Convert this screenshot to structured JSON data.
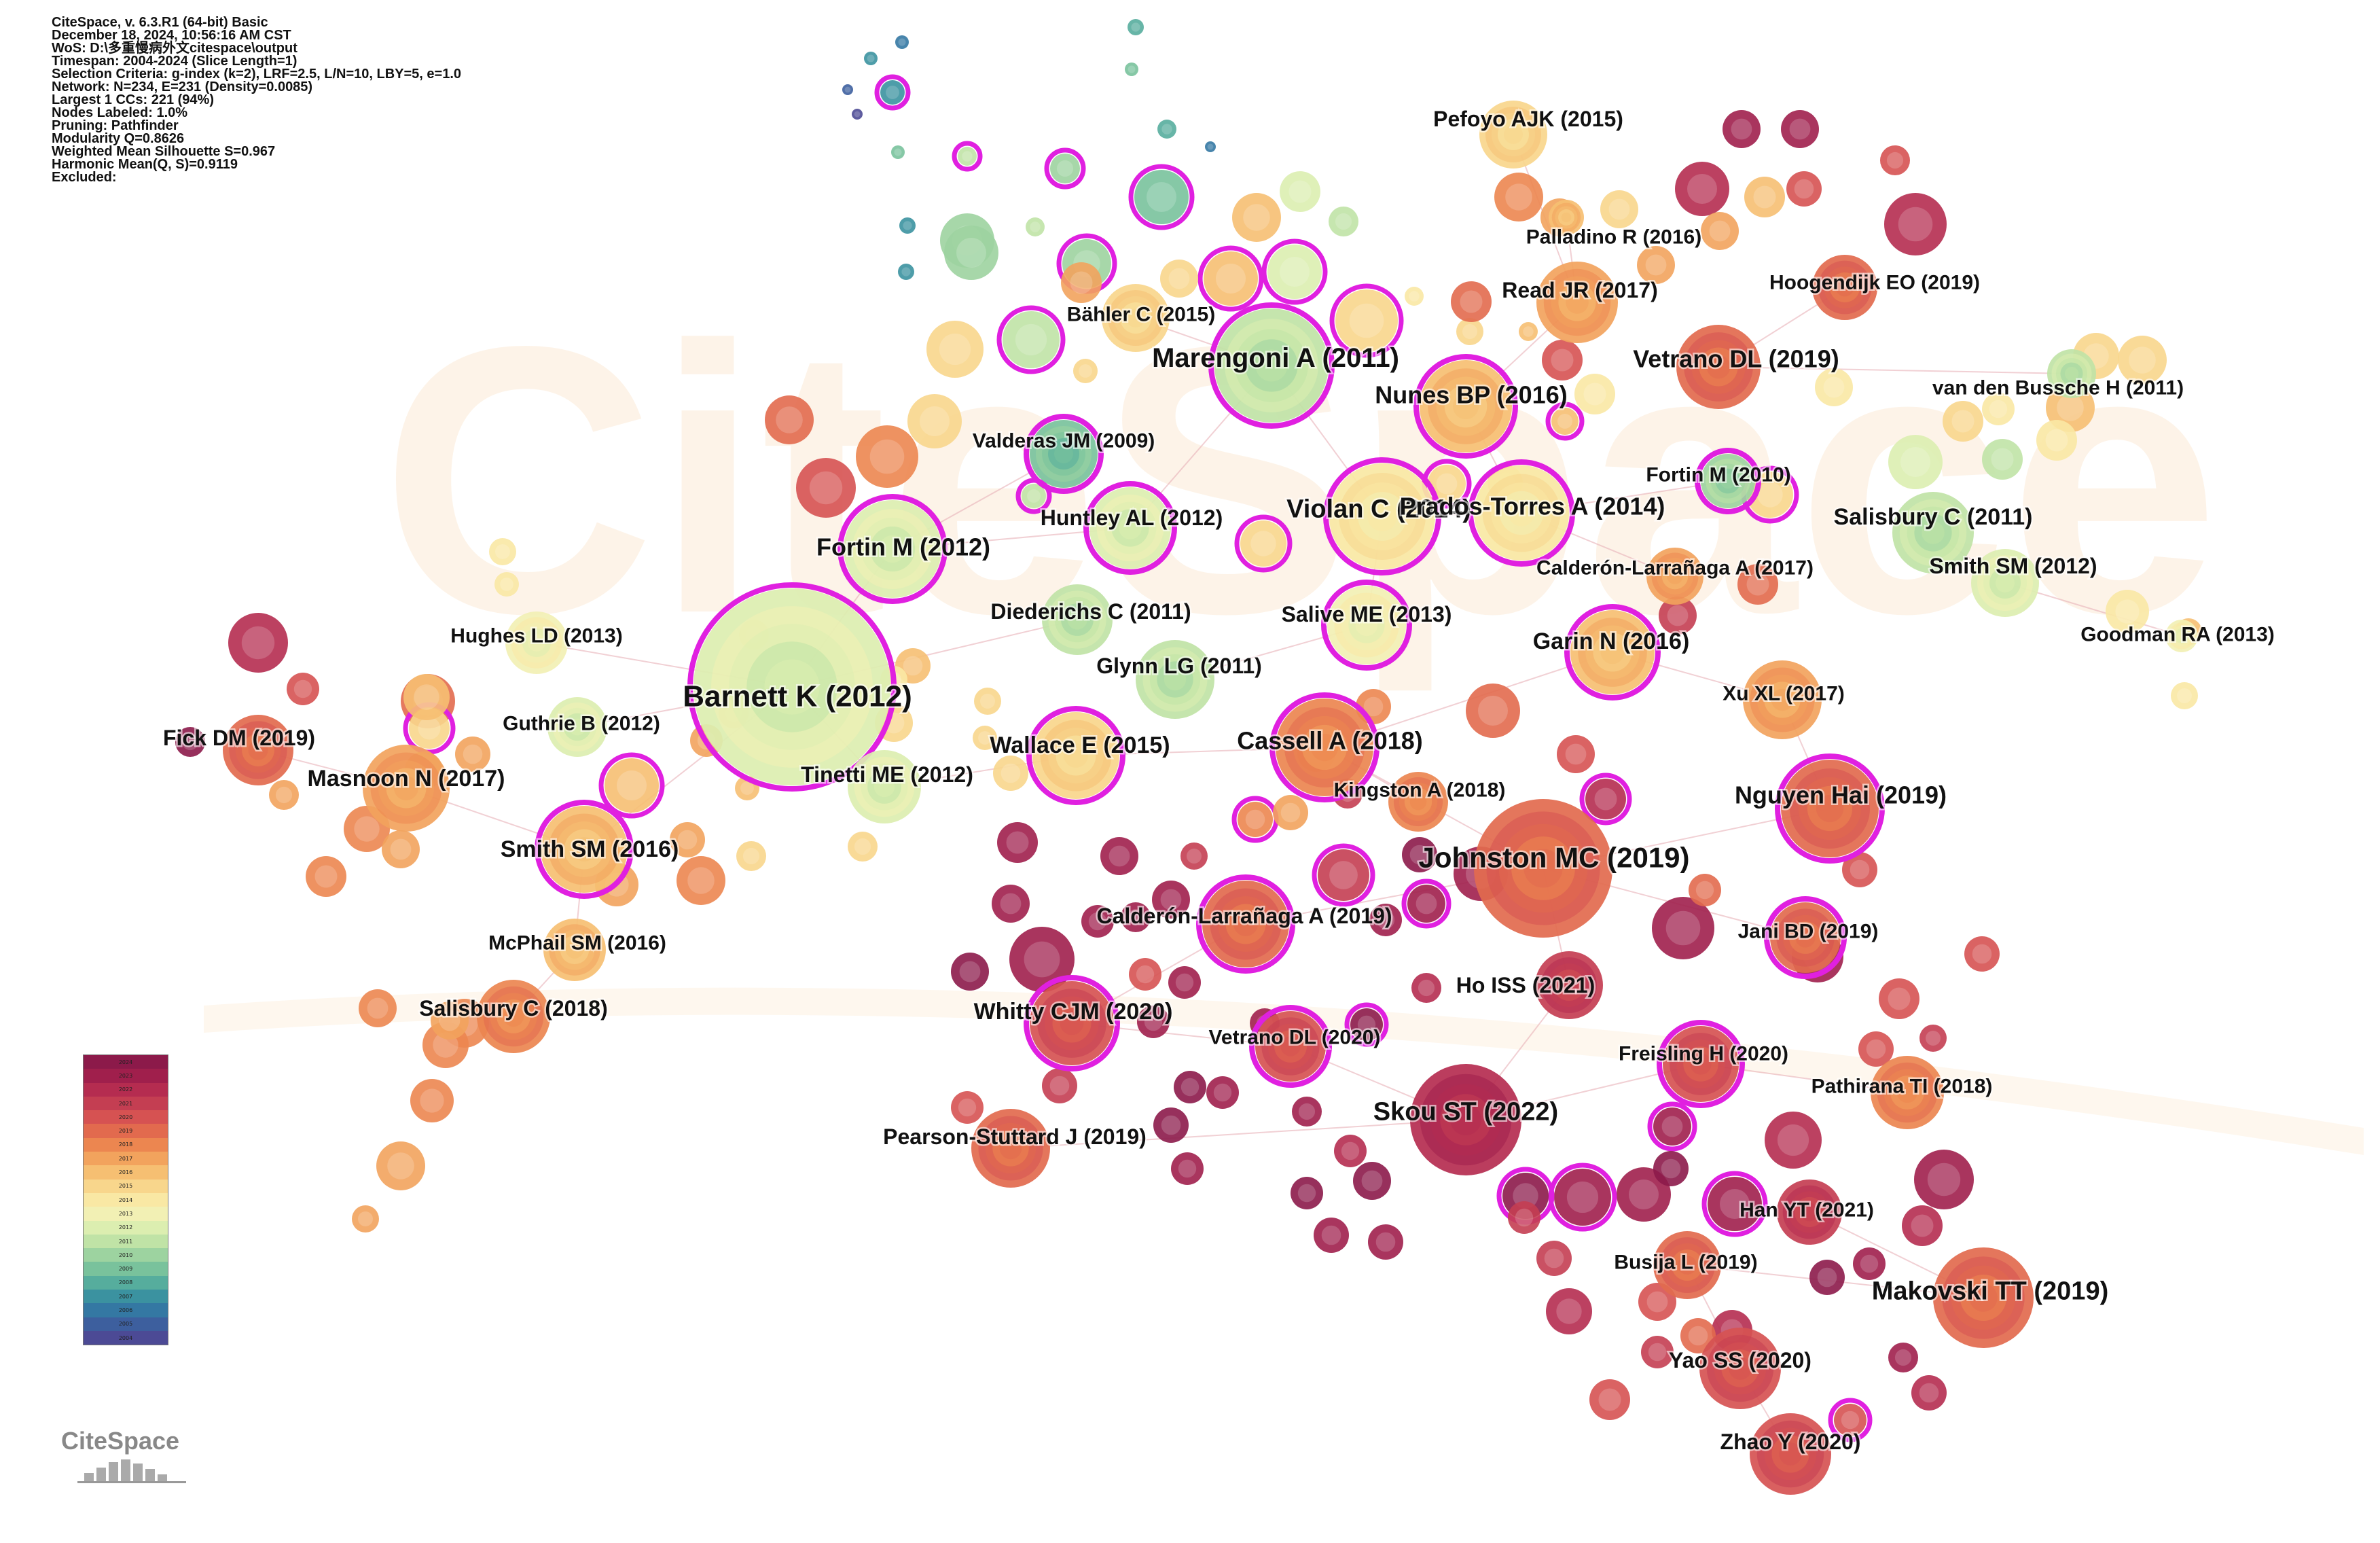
{
  "app": {
    "info_lines": [
      "CiteSpace, v. 6.3.R1 (64-bit) Basic",
      "December 18, 2024, 10:56:16 AM CST",
      "WoS: D:\\多重慢病外文citespace\\output",
      "Timespan: 2004-2024 (Slice Length=1)",
      "Selection Criteria: g-index (k=2), LRF=2.5, L/N=10, LBY=5, e=1.0",
      "Network: N=234, E=231 (Density=0.0085)",
      "Largest 1 CCs: 221 (94%)",
      "Nodes Labeled: 1.0%",
      "Pruning: Pathfinder",
      "Modularity Q=0.8626",
      "Weighted Mean Silhouette S=0.967",
      "Harmonic Mean(Q, S)=0.9119",
      "Excluded:"
    ],
    "logo_text": "CiteSpace",
    "watermark_text": "CiteSpace"
  },
  "legend": {
    "years": [
      "2024",
      "2023",
      "2022",
      "2021",
      "2020",
      "2019",
      "2018",
      "2017",
      "2016",
      "2015",
      "2014",
      "2013",
      "2012",
      "2011",
      "2010",
      "2009",
      "2008",
      "2007",
      "2006",
      "2005",
      "2004"
    ],
    "colors": [
      "#8c1a4a",
      "#a01f4c",
      "#b52c50",
      "#c43e52",
      "#d65252",
      "#e26a4e",
      "#ec8650",
      "#f2a35d",
      "#f6bf72",
      "#f8d68c",
      "#f9e8a4",
      "#f2f0b4",
      "#dceeb0",
      "#c0e3a6",
      "#9dd3a0",
      "#79c29c",
      "#56ad9d",
      "#3b92a0",
      "#3478a3",
      "#3d5f9e",
      "#4c4a95"
    ]
  },
  "nodes": [
    {
      "id": "barnett",
      "label": "Barnett K (2012)",
      "year": 2012,
      "size": "xl",
      "burst": true
    },
    {
      "id": "johnston",
      "label": "Johnston MC (2019)",
      "year": 2019,
      "size": "xl",
      "burst": false
    },
    {
      "id": "marengoni",
      "label": "Marengoni A (2011)",
      "year": 2011,
      "size": "l",
      "burst": true
    },
    {
      "id": "skou",
      "label": "Skou ST (2022)",
      "year": 2022,
      "size": "l",
      "burst": false
    },
    {
      "id": "makovski",
      "label": "Makovski TT (2019)",
      "year": 2019,
      "size": "l",
      "burst": false
    },
    {
      "id": "violan",
      "label": "Violan C (2014)",
      "year": 2014,
      "size": "l",
      "burst": true
    },
    {
      "id": "fortin2012",
      "label": "Fortin M (2012)",
      "year": 2012,
      "size": "l",
      "burst": true
    },
    {
      "id": "nunes",
      "label": "Nunes BP (2016)",
      "year": 2016,
      "size": "l",
      "burst": true
    },
    {
      "id": "vetrano2019",
      "label": "Vetrano DL (2019)",
      "year": 2019,
      "size": "l",
      "burst": false
    },
    {
      "id": "cassell",
      "label": "Cassell A (2018)",
      "year": 2018,
      "size": "l",
      "burst": true
    },
    {
      "id": "nguyen",
      "label": "Nguyen Hai (2019)",
      "year": 2019,
      "size": "l",
      "burst": true
    },
    {
      "id": "pefoyo",
      "label": "Pefoyo AJK (2015)",
      "year": 2015,
      "size": "m",
      "burst": false
    },
    {
      "id": "palladino",
      "label": "Palladino R (2016)",
      "year": 2016,
      "size": "s",
      "burst": false
    },
    {
      "id": "hoogendijk",
      "label": "Hoogendijk EO (2019)",
      "year": 2019,
      "size": "m",
      "burst": false
    },
    {
      "id": "read",
      "label": "Read JR (2017)",
      "year": 2017,
      "size": "m",
      "burst": false
    },
    {
      "id": "bahler",
      "label": "Bähler C (2015)",
      "year": 2015,
      "size": "m",
      "burst": false
    },
    {
      "id": "vandenbussche",
      "label": "van den Bussche H (2011)",
      "year": 2011,
      "size": "m",
      "burst": false
    },
    {
      "id": "valderas",
      "label": "Valderas JM (2009)",
      "year": 2009,
      "size": "m",
      "burst": true
    },
    {
      "id": "fortin2010",
      "label": "Fortin M (2010)",
      "year": 2010,
      "size": "s",
      "burst": true
    },
    {
      "id": "prados",
      "label": "Prados-Torres A (2014)",
      "year": 2014,
      "size": "l",
      "burst": true
    },
    {
      "id": "huntley",
      "label": "Huntley AL (2012)",
      "year": 2012,
      "size": "m",
      "burst": true
    },
    {
      "id": "salisbury2011",
      "label": "Salisbury C (2011)",
      "year": 2011,
      "size": "m",
      "burst": false
    },
    {
      "id": "calderon2017",
      "label": "Calderón-Larrañaga A (2017)",
      "year": 2017,
      "size": "m",
      "burst": false
    },
    {
      "id": "smithsm2012",
      "label": "Smith SM (2012)",
      "year": 2012,
      "size": "m",
      "burst": false
    },
    {
      "id": "diederichs",
      "label": "Diederichs C (2011)",
      "year": 2011,
      "size": "m",
      "burst": false
    },
    {
      "id": "salive",
      "label": "Salive ME (2013)",
      "year": 2013,
      "size": "m",
      "burst": true
    },
    {
      "id": "hughes",
      "label": "Hughes LD (2013)",
      "year": 2013,
      "size": "m",
      "burst": false
    },
    {
      "id": "goodman",
      "label": "Goodman RA (2013)",
      "year": 2013,
      "size": "s",
      "burst": false
    },
    {
      "id": "garin",
      "label": "Garin N (2016)",
      "year": 2016,
      "size": "m",
      "burst": true
    },
    {
      "id": "glynn",
      "label": "Glynn LG (2011)",
      "year": 2011,
      "size": "m",
      "burst": false
    },
    {
      "id": "xu",
      "label": "Xu XL (2017)",
      "year": 2017,
      "size": "m",
      "burst": false
    },
    {
      "id": "guthrie",
      "label": "Guthrie B (2012)",
      "year": 2012,
      "size": "m",
      "burst": false
    },
    {
      "id": "fick",
      "label": "Fick DM (2019)",
      "year": 2019,
      "size": "m",
      "burst": false
    },
    {
      "id": "wallace",
      "label": "Wallace E (2015)",
      "year": 2015,
      "size": "m",
      "burst": true
    },
    {
      "id": "tinetti",
      "label": "Tinetti ME (2012)",
      "year": 2012,
      "size": "m",
      "burst": false
    },
    {
      "id": "masnoon",
      "label": "Masnoon N (2017)",
      "year": 2017,
      "size": "m",
      "burst": false
    },
    {
      "id": "kingston",
      "label": "Kingston A (2018)",
      "year": 2018,
      "size": "m",
      "burst": false
    },
    {
      "id": "smithsm2016",
      "label": "Smith SM (2016)",
      "year": 2016,
      "size": "m",
      "burst": true
    },
    {
      "id": "calderon2019",
      "label": "Calderón-Larrañaga A (2019)",
      "year": 2019,
      "size": "m",
      "burst": true
    },
    {
      "id": "jani",
      "label": "Jani BD (2019)",
      "year": 2019,
      "size": "m",
      "burst": true
    },
    {
      "id": "mcphail",
      "label": "McPhail SM (2016)",
      "year": 2016,
      "size": "m",
      "burst": false
    },
    {
      "id": "ho",
      "label": "Ho ISS (2021)",
      "year": 2021,
      "size": "m",
      "burst": false
    },
    {
      "id": "salisbury2018",
      "label": "Salisbury C (2018)",
      "year": 2018,
      "size": "m",
      "burst": false
    },
    {
      "id": "whitty",
      "label": "Whitty CJM (2020)",
      "year": 2020,
      "size": "m",
      "burst": true
    },
    {
      "id": "vetrano2020",
      "label": "Vetrano DL (2020)",
      "year": 2020,
      "size": "m",
      "burst": true
    },
    {
      "id": "freisling",
      "label": "Freisling H (2020)",
      "year": 2020,
      "size": "m",
      "burst": true
    },
    {
      "id": "pathirana",
      "label": "Pathirana TI (2018)",
      "year": 2018,
      "size": "m",
      "burst": false
    },
    {
      "id": "pearson",
      "label": "Pearson-Stuttard J (2019)",
      "year": 2019,
      "size": "m",
      "burst": false
    },
    {
      "id": "han",
      "label": "Han YT (2021)",
      "year": 2021,
      "size": "m",
      "burst": false
    },
    {
      "id": "busija",
      "label": "Busija L (2019)",
      "year": 2019,
      "size": "m",
      "burst": false
    },
    {
      "id": "yao",
      "label": "Yao SS (2020)",
      "year": 2020,
      "size": "m",
      "burst": false
    },
    {
      "id": "zhao",
      "label": "Zhao Y (2020)",
      "year": 2020,
      "size": "m",
      "burst": false
    }
  ]
}
